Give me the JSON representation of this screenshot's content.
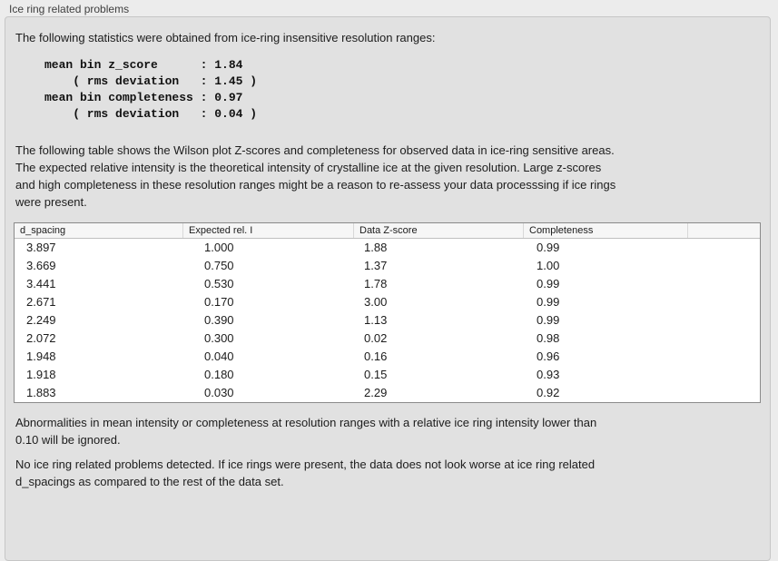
{
  "panel": {
    "title": "Ice ring related problems",
    "intro": "The following statistics were obtained from ice-ring insensitive resolution ranges:",
    "stats_text": "mean bin z_score      : 1.84\n    ( rms deviation   : 1.45 )\nmean bin completeness : 0.97\n    ( rms deviation   : 0.04 )",
    "stats": {
      "mean_bin_z_score": 1.84,
      "z_score_rms_deviation": 1.45,
      "mean_bin_completeness": 0.97,
      "completeness_rms_deviation": 0.04
    },
    "table_description": "The following table shows the Wilson plot Z-scores and completeness for observed data in ice-ring sensitive areas.\nThe expected relative intensity is the theoretical intensity of crystalline ice at the given resolution. Large z-scores\nand high completeness in these resolution ranges might be a reason to re-assess your data processsing if ice rings\nwere present.",
    "ignore_note": "Abnormalities in mean intensity or completeness at resolution ranges with a relative ice ring intensity lower than\n0.10 will be ignored.",
    "conclusion": "No ice ring related problems detected. If ice rings were present, the data does not look worse at ice ring related\nd_spacings as compared to the rest of the data set."
  },
  "table": {
    "columns": [
      "d_spacing",
      "Expected rel. I",
      "Data Z-score",
      "Completeness",
      ""
    ],
    "rows": [
      [
        "3.897",
        "1.000",
        "1.88",
        "0.99"
      ],
      [
        "3.669",
        "0.750",
        "1.37",
        "1.00"
      ],
      [
        "3.441",
        "0.530",
        "1.78",
        "0.99"
      ],
      [
        "2.671",
        "0.170",
        "3.00",
        "0.99"
      ],
      [
        "2.249",
        "0.390",
        "1.13",
        "0.99"
      ],
      [
        "2.072",
        "0.300",
        "0.02",
        "0.98"
      ],
      [
        "1.948",
        "0.040",
        "0.16",
        "0.96"
      ],
      [
        "1.918",
        "0.180",
        "0.15",
        "0.93"
      ],
      [
        "1.883",
        "0.030",
        "2.29",
        "0.92"
      ]
    ]
  },
  "colors": {
    "page_background": "#ececec",
    "panel_background": "#e1e1e1",
    "panel_border": "#c6c6c6",
    "table_border": "#8a8a8a",
    "table_header_background": "#f6f6f6",
    "table_body_background": "#ffffff",
    "text": "#1c1c1c"
  }
}
